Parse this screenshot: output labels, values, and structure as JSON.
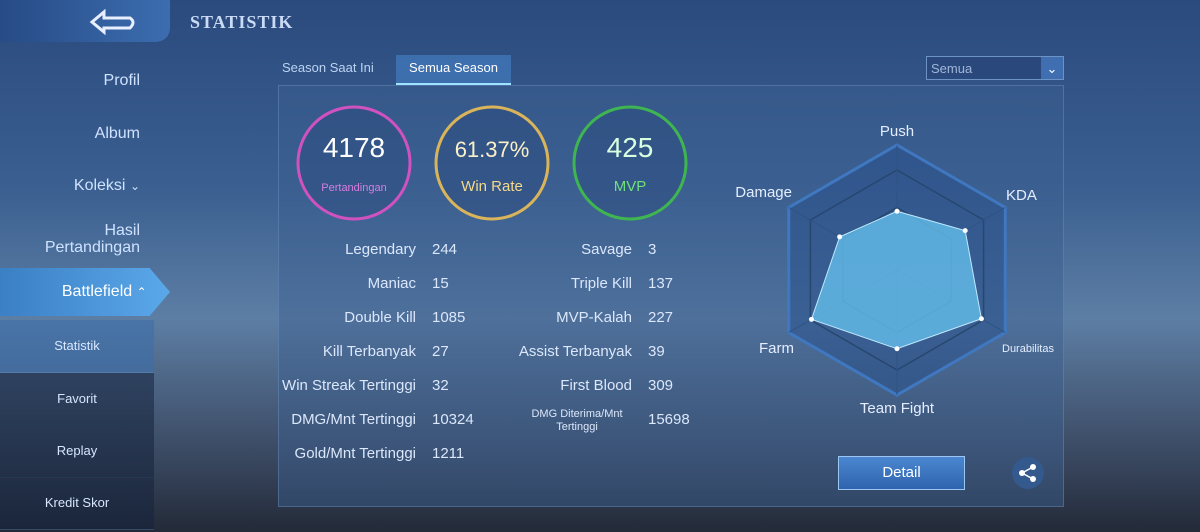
{
  "header": {
    "title": "STATISTIK"
  },
  "sidebar": {
    "items": [
      "Profil",
      "Album",
      "Koleksi",
      "Hasil Pertandingan",
      "Battlefield"
    ],
    "subitems": [
      "Statistik",
      "Favorit",
      "Replay",
      "Kredit Skor"
    ]
  },
  "tabs": [
    "Season Saat Ini",
    "Semua Season"
  ],
  "filter": "Semua",
  "summary": [
    {
      "value": 4178,
      "label": "Pertandingan"
    },
    {
      "value": "61.37%",
      "label": "Win Rate"
    },
    {
      "value": 425,
      "label": "MVP"
    }
  ],
  "stats_left": [
    {
      "label": "Legendary",
      "value": 244
    },
    {
      "label": "Maniac",
      "value": 15
    },
    {
      "label": "Double Kill",
      "value": 1085
    },
    {
      "label": "Kill Terbanyak",
      "value": 27
    },
    {
      "label": "Win Streak Tertinggi",
      "value": 32
    },
    {
      "label": "DMG/Mnt Tertinggi",
      "value": 10324
    },
    {
      "label": "Gold/Mnt Tertinggi",
      "value": 1211
    }
  ],
  "stats_right": [
    {
      "label": "Savage",
      "value": 3
    },
    {
      "label": "Triple Kill",
      "value": 137
    },
    {
      "label": "MVP-Kalah",
      "value": 227
    },
    {
      "label": "Assist Terbanyak",
      "value": 39
    },
    {
      "label": "First Blood",
      "value": 309
    },
    {
      "label": "DMG Diterima/Mnt Tertinggi",
      "value": 15698
    }
  ],
  "radar": {
    "axes": [
      "Push",
      "KDA",
      "Durabilitas",
      "Team Fight",
      "Farm",
      "Damage"
    ],
    "values": [
      47,
      63,
      78,
      63,
      79,
      53
    ],
    "rlim": [
      0,
      100
    ]
  },
  "detail_button": "Detail"
}
